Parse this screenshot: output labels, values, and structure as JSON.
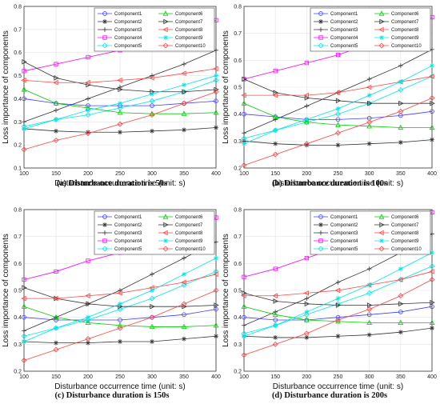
{
  "chart_data": [
    {
      "type": "line",
      "caption": "(a) Disturbance duration is 50s",
      "xlabel": "Disturbance occurrence time (unit: s)",
      "ylabel": "Loss importance of components",
      "xlim": [
        100,
        400
      ],
      "ylim": [
        0.1,
        0.8
      ],
      "xticks": [
        "100",
        "150",
        "200",
        "250",
        "300",
        "350",
        "400"
      ],
      "yticks": [
        "0.1",
        "0.2",
        "0.3",
        "0.4",
        "0.5",
        "0.6",
        "0.7",
        "0.8"
      ],
      "legend": "top-right",
      "x": [
        100,
        150,
        200,
        250,
        300,
        350,
        400
      ],
      "series": [
        {
          "name": "Component1",
          "color": "#4040ff",
          "marker": "circle",
          "values": [
            0.4,
            0.38,
            0.37,
            0.37,
            0.37,
            0.38,
            0.39
          ]
        },
        {
          "name": "Component2",
          "color": "#333333",
          "marker": "star",
          "values": [
            0.27,
            0.26,
            0.255,
            0.255,
            0.26,
            0.265,
            0.275
          ]
        },
        {
          "name": "Component3",
          "color": "#333333",
          "marker": "plus",
          "values": [
            0.3,
            0.35,
            0.4,
            0.45,
            0.5,
            0.55,
            0.61
          ]
        },
        {
          "name": "Component4",
          "color": "#ff00ff",
          "marker": "square",
          "values": [
            0.52,
            0.55,
            0.58,
            0.61,
            0.65,
            0.7,
            0.74
          ]
        },
        {
          "name": "Component5",
          "color": "#00e5e5",
          "marker": "diamond",
          "values": [
            0.28,
            0.31,
            0.33,
            0.36,
            0.39,
            0.43,
            0.48
          ]
        },
        {
          "name": "Component6",
          "color": "#00cc00",
          "marker": "triangle",
          "values": [
            0.44,
            0.38,
            0.36,
            0.34,
            0.335,
            0.335,
            0.34
          ]
        },
        {
          "name": "Component7",
          "color": "#333333",
          "marker": "tri-right",
          "values": [
            0.56,
            0.49,
            0.46,
            0.44,
            0.43,
            0.43,
            0.44
          ]
        },
        {
          "name": "Component8",
          "color": "#ff4444",
          "marker": "tri-left",
          "values": [
            0.48,
            0.47,
            0.47,
            0.48,
            0.49,
            0.51,
            0.53
          ]
        },
        {
          "name": "Component9",
          "color": "#00e5e5",
          "marker": "star",
          "values": [
            0.27,
            0.31,
            0.35,
            0.38,
            0.42,
            0.46,
            0.5
          ]
        },
        {
          "name": "Component10",
          "color": "#ff4444",
          "marker": "diamond",
          "values": [
            0.18,
            0.22,
            0.25,
            0.29,
            0.33,
            0.38,
            0.43
          ]
        }
      ]
    },
    {
      "type": "line",
      "caption": "(b) Disturbance duration is 100s",
      "xlabel": "Disturbance occurrence time (unit: s)",
      "ylabel": "Loss importance of components",
      "xlim": [
        100,
        400
      ],
      "ylim": [
        0.2,
        0.8
      ],
      "xticks": [
        "100",
        "150",
        "200",
        "250",
        "300",
        "350",
        "400"
      ],
      "yticks": [
        "0.2",
        "0.3",
        "0.4",
        "0.5",
        "0.6",
        "0.7",
        "0.8"
      ],
      "legend": "top-right",
      "x": [
        100,
        150,
        200,
        250,
        300,
        350,
        400
      ],
      "series": [
        {
          "name": "Component1",
          "color": "#4040ff",
          "marker": "circle",
          "values": [
            0.4,
            0.39,
            0.38,
            0.38,
            0.385,
            0.395,
            0.41
          ]
        },
        {
          "name": "Component2",
          "color": "#333333",
          "marker": "star",
          "values": [
            0.3,
            0.29,
            0.285,
            0.285,
            0.29,
            0.295,
            0.305
          ]
        },
        {
          "name": "Component3",
          "color": "#333333",
          "marker": "plus",
          "values": [
            0.33,
            0.38,
            0.43,
            0.48,
            0.53,
            0.58,
            0.64
          ]
        },
        {
          "name": "Component4",
          "color": "#ff00ff",
          "marker": "square",
          "values": [
            0.53,
            0.56,
            0.59,
            0.62,
            0.66,
            0.71,
            0.76
          ]
        },
        {
          "name": "Component5",
          "color": "#00e5e5",
          "marker": "diamond",
          "values": [
            0.31,
            0.34,
            0.37,
            0.4,
            0.44,
            0.49,
            0.54
          ]
        },
        {
          "name": "Component6",
          "color": "#00cc00",
          "marker": "triangle",
          "values": [
            0.44,
            0.39,
            0.37,
            0.36,
            0.355,
            0.35,
            0.35
          ]
        },
        {
          "name": "Component7",
          "color": "#333333",
          "marker": "tri-right",
          "values": [
            0.53,
            0.48,
            0.46,
            0.45,
            0.44,
            0.44,
            0.44
          ]
        },
        {
          "name": "Component8",
          "color": "#ff4444",
          "marker": "tri-left",
          "values": [
            0.47,
            0.47,
            0.47,
            0.48,
            0.5,
            0.52,
            0.54
          ]
        },
        {
          "name": "Component9",
          "color": "#00e5e5",
          "marker": "star",
          "values": [
            0.29,
            0.34,
            0.38,
            0.42,
            0.47,
            0.52,
            0.58
          ]
        },
        {
          "name": "Component10",
          "color": "#ff4444",
          "marker": "diamond",
          "values": [
            0.21,
            0.25,
            0.29,
            0.33,
            0.37,
            0.41,
            0.46
          ]
        }
      ]
    },
    {
      "type": "line",
      "caption": "(c) Disturbance duration is 150s",
      "xlabel": "Disturbance occurrence time (unit: s)",
      "ylabel": "Loss importance of components",
      "xlim": [
        100,
        400
      ],
      "ylim": [
        0.2,
        0.8
      ],
      "xticks": [
        "100",
        "150",
        "200",
        "250",
        "300",
        "350",
        "400"
      ],
      "yticks": [
        "0.2",
        "0.3",
        "0.4",
        "0.5",
        "0.6",
        "0.7",
        "0.8"
      ],
      "legend": "top-right",
      "x": [
        100,
        150,
        200,
        250,
        300,
        350,
        400
      ],
      "series": [
        {
          "name": "Component1",
          "color": "#4040ff",
          "marker": "circle",
          "values": [
            0.4,
            0.39,
            0.39,
            0.39,
            0.4,
            0.41,
            0.43
          ]
        },
        {
          "name": "Component2",
          "color": "#333333",
          "marker": "star",
          "values": [
            0.31,
            0.305,
            0.305,
            0.31,
            0.31,
            0.32,
            0.33
          ]
        },
        {
          "name": "Component3",
          "color": "#333333",
          "marker": "plus",
          "values": [
            0.35,
            0.4,
            0.45,
            0.5,
            0.56,
            0.62,
            0.68
          ]
        },
        {
          "name": "Component4",
          "color": "#ff00ff",
          "marker": "square",
          "values": [
            0.54,
            0.57,
            0.61,
            0.64,
            0.68,
            0.72,
            0.77
          ]
        },
        {
          "name": "Component5",
          "color": "#00e5e5",
          "marker": "diamond",
          "values": [
            0.33,
            0.36,
            0.39,
            0.43,
            0.47,
            0.52,
            0.57
          ]
        },
        {
          "name": "Component6",
          "color": "#00cc00",
          "marker": "triangle",
          "values": [
            0.44,
            0.4,
            0.38,
            0.37,
            0.365,
            0.365,
            0.37
          ]
        },
        {
          "name": "Component7",
          "color": "#333333",
          "marker": "tri-right",
          "values": [
            0.51,
            0.47,
            0.45,
            0.44,
            0.44,
            0.44,
            0.445
          ]
        },
        {
          "name": "Component8",
          "color": "#ff4444",
          "marker": "tri-left",
          "values": [
            0.47,
            0.47,
            0.48,
            0.49,
            0.51,
            0.53,
            0.56
          ]
        },
        {
          "name": "Component9",
          "color": "#00e5e5",
          "marker": "star",
          "values": [
            0.31,
            0.36,
            0.4,
            0.45,
            0.5,
            0.56,
            0.62
          ]
        },
        {
          "name": "Component10",
          "color": "#ff4444",
          "marker": "diamond",
          "values": [
            0.24,
            0.28,
            0.32,
            0.36,
            0.4,
            0.45,
            0.5
          ]
        }
      ]
    },
    {
      "type": "line",
      "caption": "(d) Disturbance duration is 200s",
      "xlabel": "Disturbance occurrence time (unit: s)",
      "ylabel": "Loss importance of components",
      "xlim": [
        100,
        400
      ],
      "ylim": [
        0.2,
        0.8
      ],
      "xticks": [
        "100",
        "150",
        "200",
        "250",
        "300",
        "350",
        "400"
      ],
      "yticks": [
        "0.2",
        "0.3",
        "0.4",
        "0.5",
        "0.6",
        "0.7",
        "0.8"
      ],
      "legend": "top-right",
      "x": [
        100,
        150,
        200,
        250,
        300,
        350,
        400
      ],
      "series": [
        {
          "name": "Component1",
          "color": "#4040ff",
          "marker": "circle",
          "values": [
            0.4,
            0.39,
            0.39,
            0.4,
            0.41,
            0.42,
            0.44
          ]
        },
        {
          "name": "Component2",
          "color": "#333333",
          "marker": "star",
          "values": [
            0.33,
            0.325,
            0.325,
            0.33,
            0.335,
            0.345,
            0.36
          ]
        },
        {
          "name": "Component3",
          "color": "#333333",
          "marker": "plus",
          "values": [
            0.37,
            0.42,
            0.47,
            0.53,
            0.58,
            0.64,
            0.71
          ]
        },
        {
          "name": "Component4",
          "color": "#ff00ff",
          "marker": "square",
          "values": [
            0.55,
            0.58,
            0.62,
            0.66,
            0.7,
            0.74,
            0.79
          ]
        },
        {
          "name": "Component5",
          "color": "#00e5e5",
          "marker": "diamond",
          "values": [
            0.34,
            0.37,
            0.41,
            0.45,
            0.49,
            0.54,
            0.59
          ]
        },
        {
          "name": "Component6",
          "color": "#00cc00",
          "marker": "triangle",
          "values": [
            0.44,
            0.41,
            0.39,
            0.385,
            0.38,
            0.38,
            0.38
          ]
        },
        {
          "name": "Component7",
          "color": "#333333",
          "marker": "tri-right",
          "values": [
            0.49,
            0.46,
            0.45,
            0.445,
            0.445,
            0.45,
            0.455
          ]
        },
        {
          "name": "Component8",
          "color": "#ff4444",
          "marker": "tri-left",
          "values": [
            0.48,
            0.48,
            0.49,
            0.5,
            0.52,
            0.54,
            0.57
          ]
        },
        {
          "name": "Component9",
          "color": "#00e5e5",
          "marker": "star",
          "values": [
            0.33,
            0.37,
            0.42,
            0.47,
            0.52,
            0.58,
            0.64
          ]
        },
        {
          "name": "Component10",
          "color": "#ff4444",
          "marker": "diamond",
          "values": [
            0.26,
            0.3,
            0.34,
            0.39,
            0.43,
            0.48,
            0.54
          ]
        }
      ]
    }
  ]
}
